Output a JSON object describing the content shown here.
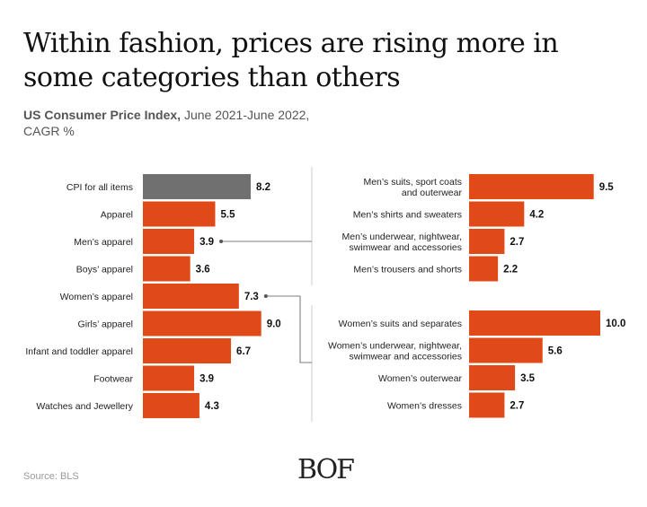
{
  "header": {
    "title": "Within fashion, prices are rising more in some categories than others",
    "subtitle_bold": "US Consumer Price Index,",
    "subtitle_rest": " June 2021-June 2022, CAGR %"
  },
  "footer": {
    "source": "Source: BLS",
    "logo": "BOF"
  },
  "colors": {
    "accent": "#e04a18",
    "highlight": "#707070",
    "connector": "#555555"
  },
  "chart_data": [
    {
      "type": "bar",
      "orientation": "horizontal",
      "categories": [
        "CPI for all items",
        "Apparel",
        "Men’s apparel",
        "Boys’ apparel",
        "Women’s apparel",
        "Girls’ apparel",
        "Infant and toddler apparel",
        "Footwear",
        "Watches and Jewellery"
      ],
      "values": [
        8.2,
        5.5,
        3.9,
        3.6,
        7.3,
        9.0,
        6.7,
        3.9,
        4.3
      ],
      "value_labels": [
        "8.2",
        "5.5",
        "3.9",
        "3.6",
        "7.3",
        "9.0",
        "6.7",
        "3.9",
        "4.3"
      ],
      "highlight_category": "CPI for all items",
      "xlim": [
        0,
        10
      ]
    },
    {
      "type": "bar",
      "orientation": "horizontal",
      "parent": "Men’s apparel",
      "categories": [
        "Men’s suits, sport coats and outerwear",
        "Men’s shirts and sweaters",
        "Men’s underwear, nightwear, swimwear and accessories",
        "Men’s trousers and shorts"
      ],
      "label_lines": [
        [
          "Men’s suits, sport coats",
          "and outerwear"
        ],
        [
          "Men’s shirts and sweaters"
        ],
        [
          "Men’s underwear, nightwear,",
          "swimwear and accessories"
        ],
        [
          "Men’s trousers and shorts"
        ]
      ],
      "values": [
        9.5,
        4.2,
        2.7,
        2.2
      ],
      "value_labels": [
        "9.5",
        "4.2",
        "2.7",
        "2.2"
      ],
      "xlim": [
        0,
        10
      ]
    },
    {
      "type": "bar",
      "orientation": "horizontal",
      "parent": "Women’s apparel",
      "categories": [
        "Women’s suits and separates",
        "Women’s underwear, nightwear, swimwear and accessories",
        "Women’s outerwear",
        "Women’s dresses"
      ],
      "label_lines": [
        [
          "Women’s suits and separates"
        ],
        [
          "Women’s underwear, nightwear,",
          "swimwear and accessories"
        ],
        [
          "Women’s outerwear"
        ],
        [
          "Women’s dresses"
        ]
      ],
      "values": [
        10.0,
        5.6,
        3.5,
        2.7
      ],
      "value_labels": [
        "10.0",
        "5.6",
        "3.5",
        "2.7"
      ],
      "xlim": [
        0,
        10
      ]
    }
  ]
}
